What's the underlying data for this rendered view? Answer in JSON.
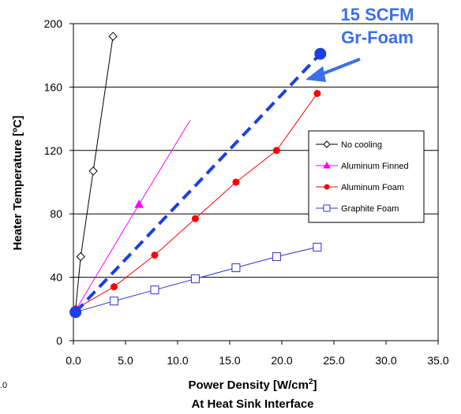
{
  "chart_data": {
    "type": "line",
    "xlabel": "Power Density [W/cm",
    "xlabel_sup": "2",
    "xlabel_end": "]",
    "xlabel_line2": "At Heat Sink Interface",
    "ylabel": "Heater Temperature [ºC]",
    "xlim": [
      0,
      35
    ],
    "ylim": [
      0,
      200
    ],
    "x_ticks": [
      "0.0",
      "5.0",
      "10.0",
      "15.0",
      "20.0",
      "25.0",
      "30.0",
      "35.0"
    ],
    "y_ticks": [
      "0",
      "40",
      "80",
      "120",
      "160",
      "200"
    ],
    "x_tick_values": [
      0,
      5,
      10,
      15,
      20,
      25,
      30,
      35
    ],
    "y_tick_values": [
      0,
      40,
      80,
      120,
      160,
      200
    ],
    "grid": "horizontal",
    "legend_position": "right",
    "series": [
      {
        "name": "No cooling",
        "color": "#000000",
        "marker": "diamond-open",
        "x": [
          0.2,
          0.7,
          1.9,
          3.8
        ],
        "y": [
          19,
          53,
          107,
          192
        ]
      },
      {
        "name": "Aluminum Finned",
        "color": "#ff00ff",
        "marker": "triangle-filled",
        "x": [
          0.2,
          6.3
        ],
        "y": [
          19,
          86
        ],
        "extend_to": [
          11.2,
          139
        ]
      },
      {
        "name": "Aluminum Foam",
        "color": "#ff0000",
        "marker": "circle-filled",
        "x": [
          0.2,
          3.9,
          7.8,
          11.7,
          15.6,
          19.5,
          23.4
        ],
        "y": [
          20,
          34,
          54,
          77,
          100,
          120,
          156
        ]
      },
      {
        "name": "Graphite Foam",
        "color": "#3333cc",
        "marker": "square-open",
        "x": [
          0.2,
          3.9,
          7.8,
          11.7,
          15.6,
          19.5,
          23.4
        ],
        "y": [
          18,
          25,
          32,
          39,
          46,
          53,
          59
        ]
      }
    ],
    "highlight": {
      "color": "#1a3fe6",
      "style": "dashed",
      "x": [
        0.2,
        23.7
      ],
      "y": [
        18,
        181
      ],
      "label_line1": "15 SCFM",
      "label_line2": "Gr-Foam"
    },
    "stray_label": ".0"
  }
}
